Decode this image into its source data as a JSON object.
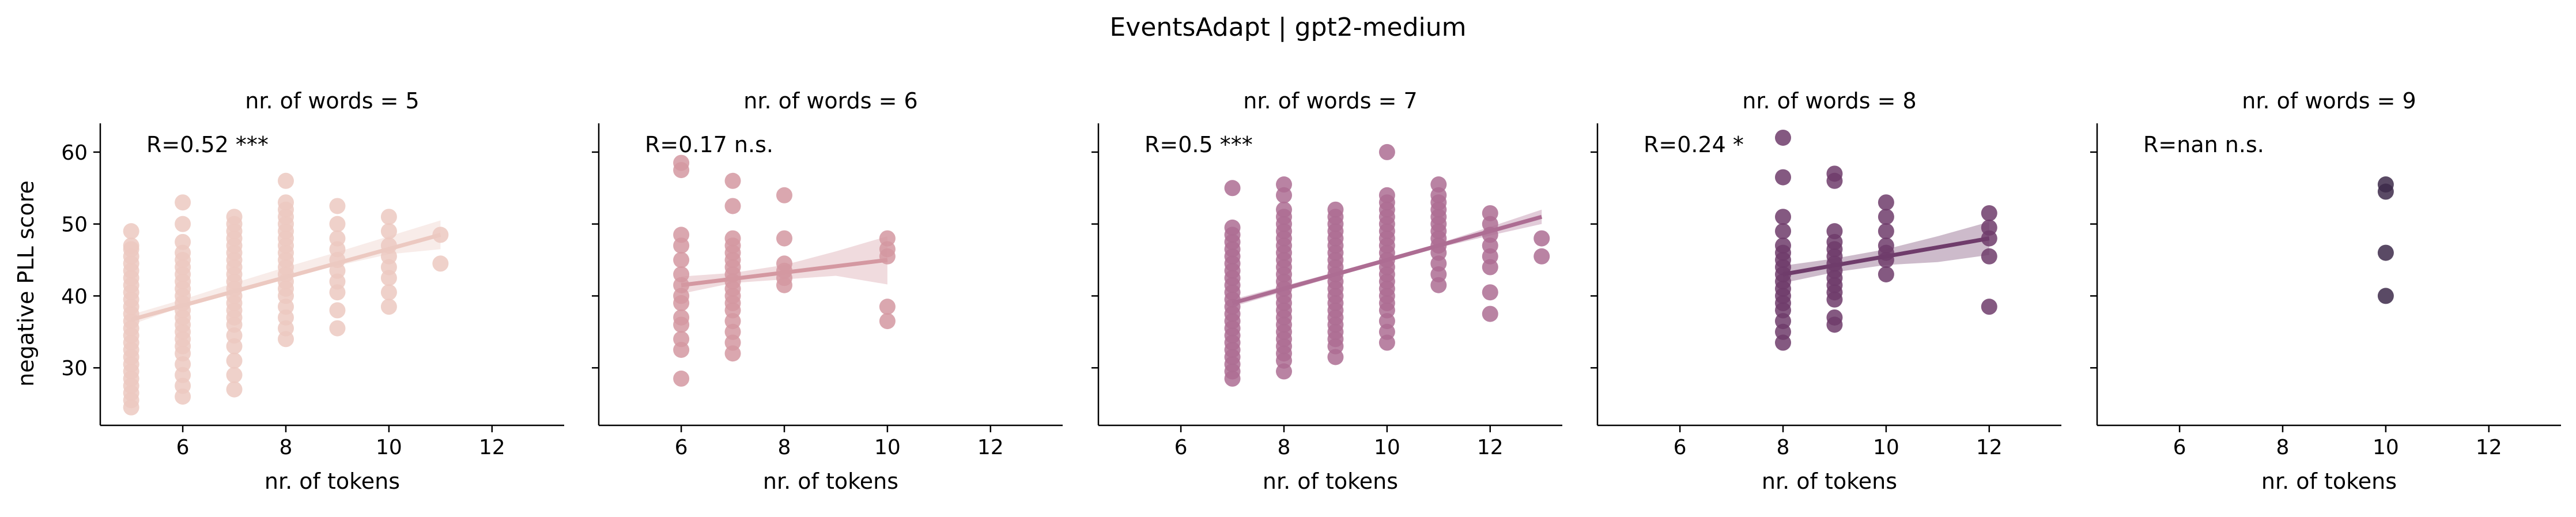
{
  "figure_title": "EventsAdapt | gpt2-medium",
  "shared_ylabel": "negative PLL score",
  "shared_xlabel": "nr. of tokens",
  "x_ticks": [
    6,
    8,
    10,
    12
  ],
  "y_ticks": [
    30,
    40,
    50,
    60
  ],
  "x_range": [
    4.4,
    13.4
  ],
  "y_range": [
    22,
    64
  ],
  "chart_data": [
    {
      "type": "scatter",
      "title": "nr. of words = 5",
      "annotation": "R=0.52 ***",
      "color": "#ecc9c1",
      "xlabel": "nr. of tokens",
      "ylabel": "negative PLL score",
      "points": [
        [
          5,
          24.5
        ],
        [
          5,
          25.5
        ],
        [
          5,
          26.5
        ],
        [
          5,
          27.5
        ],
        [
          5,
          28.5
        ],
        [
          5,
          29.5
        ],
        [
          5,
          30.5
        ],
        [
          5,
          31.5
        ],
        [
          5,
          32.5
        ],
        [
          5,
          33.5
        ],
        [
          5,
          34.5
        ],
        [
          5,
          35.5
        ],
        [
          5,
          36.5
        ],
        [
          5,
          37.5
        ],
        [
          5,
          38.5
        ],
        [
          5,
          39.5
        ],
        [
          5,
          40.5
        ],
        [
          5,
          41.5
        ],
        [
          5,
          42.5
        ],
        [
          5,
          43.5
        ],
        [
          5,
          44.5
        ],
        [
          5,
          45.5
        ],
        [
          5,
          46.5
        ],
        [
          5,
          47
        ],
        [
          5,
          49
        ],
        [
          6,
          26
        ],
        [
          6,
          27.5
        ],
        [
          6,
          29
        ],
        [
          6,
          30.5
        ],
        [
          6,
          32
        ],
        [
          6,
          33
        ],
        [
          6,
          34
        ],
        [
          6,
          35
        ],
        [
          6,
          36
        ],
        [
          6,
          37
        ],
        [
          6,
          38
        ],
        [
          6,
          39
        ],
        [
          6,
          40
        ],
        [
          6,
          41
        ],
        [
          6,
          42
        ],
        [
          6,
          43
        ],
        [
          6,
          44
        ],
        [
          6,
          45
        ],
        [
          6,
          46
        ],
        [
          6,
          47.5
        ],
        [
          6,
          50
        ],
        [
          6,
          53
        ],
        [
          7,
          27
        ],
        [
          7,
          29
        ],
        [
          7,
          31
        ],
        [
          7,
          33
        ],
        [
          7,
          34.5
        ],
        [
          7,
          36
        ],
        [
          7,
          37
        ],
        [
          7,
          38
        ],
        [
          7,
          39
        ],
        [
          7,
          40
        ],
        [
          7,
          41
        ],
        [
          7,
          42
        ],
        [
          7,
          43
        ],
        [
          7,
          44
        ],
        [
          7,
          45
        ],
        [
          7,
          46
        ],
        [
          7,
          47
        ],
        [
          7,
          48
        ],
        [
          7,
          49
        ],
        [
          7,
          50
        ],
        [
          7,
          51
        ],
        [
          8,
          34
        ],
        [
          8,
          35.5
        ],
        [
          8,
          37
        ],
        [
          8,
          38.5
        ],
        [
          8,
          40
        ],
        [
          8,
          41
        ],
        [
          8,
          42
        ],
        [
          8,
          43
        ],
        [
          8,
          44
        ],
        [
          8,
          45
        ],
        [
          8,
          46
        ],
        [
          8,
          47
        ],
        [
          8,
          48
        ],
        [
          8,
          49
        ],
        [
          8,
          50
        ],
        [
          8,
          51
        ],
        [
          8,
          52
        ],
        [
          8,
          53
        ],
        [
          8,
          56
        ],
        [
          9,
          35.5
        ],
        [
          9,
          38
        ],
        [
          9,
          40.5
        ],
        [
          9,
          42
        ],
        [
          9,
          43.5
        ],
        [
          9,
          45
        ],
        [
          9,
          46.5
        ],
        [
          9,
          48
        ],
        [
          9,
          50
        ],
        [
          9,
          52.5
        ],
        [
          10,
          38.5
        ],
        [
          10,
          40.5
        ],
        [
          10,
          42.5
        ],
        [
          10,
          44
        ],
        [
          10,
          45.5
        ],
        [
          10,
          47
        ],
        [
          10,
          49
        ],
        [
          10,
          51
        ],
        [
          11,
          44.5
        ],
        [
          11,
          48.5
        ]
      ],
      "fit": {
        "x": [
          5,
          11
        ],
        "y": [
          36.7,
          48.5
        ]
      },
      "ci": {
        "upper": [
          37.4,
          39.5,
          41.8,
          44.0,
          46.1,
          48.3,
          50.5
        ],
        "lower": [
          36.0,
          38.5,
          40.7,
          42.6,
          44.2,
          45.8,
          46.5
        ]
      }
    },
    {
      "type": "scatter",
      "title": "nr. of words = 6",
      "annotation": "R=0.17 n.s.",
      "color": "#d498a1",
      "xlabel": "nr. of tokens",
      "ylabel": "negative PLL score",
      "points": [
        [
          6,
          28.5
        ],
        [
          6,
          32.5
        ],
        [
          6,
          34
        ],
        [
          6,
          36
        ],
        [
          6,
          37
        ],
        [
          6,
          39
        ],
        [
          6,
          40
        ],
        [
          6,
          41.5
        ],
        [
          6,
          43
        ],
        [
          6,
          45
        ],
        [
          6,
          47
        ],
        [
          6,
          48.5
        ],
        [
          6,
          57.5
        ],
        [
          6,
          58.5
        ],
        [
          7,
          32
        ],
        [
          7,
          33.5
        ],
        [
          7,
          35
        ],
        [
          7,
          36.5
        ],
        [
          7,
          38
        ],
        [
          7,
          39
        ],
        [
          7,
          40
        ],
        [
          7,
          41
        ],
        [
          7,
          42
        ],
        [
          7,
          43
        ],
        [
          7,
          44
        ],
        [
          7,
          45
        ],
        [
          7,
          46
        ],
        [
          7,
          47
        ],
        [
          7,
          48
        ],
        [
          7,
          52.5
        ],
        [
          7,
          56
        ],
        [
          8,
          41.5
        ],
        [
          8,
          42.5
        ],
        [
          8,
          43.5
        ],
        [
          8,
          44.5
        ],
        [
          8,
          48
        ],
        [
          8,
          54
        ],
        [
          10,
          36.5
        ],
        [
          10,
          38.5
        ],
        [
          10,
          45.5
        ],
        [
          10,
          46.5
        ],
        [
          10,
          48
        ]
      ],
      "fit": {
        "x": [
          6,
          10
        ],
        "y": [
          41.5,
          45.0
        ]
      },
      "ci": {
        "upper": [
          42.7,
          43.2,
          44.3,
          46.2,
          48.3
        ],
        "lower": [
          40.3,
          41.8,
          42.3,
          42.8,
          41.6
        ]
      }
    },
    {
      "type": "scatter",
      "title": "nr. of words = 7",
      "annotation": "R=0.5 ***",
      "color": "#ad6d93",
      "xlabel": "nr. of tokens",
      "ylabel": "negative PLL score",
      "points": [
        [
          7,
          28.5
        ],
        [
          7,
          29.5
        ],
        [
          7,
          30.5
        ],
        [
          7,
          31.5
        ],
        [
          7,
          32.5
        ],
        [
          7,
          33.5
        ],
        [
          7,
          34.5
        ],
        [
          7,
          35.5
        ],
        [
          7,
          36.5
        ],
        [
          7,
          37.5
        ],
        [
          7,
          38.5
        ],
        [
          7,
          39.5
        ],
        [
          7,
          40.5
        ],
        [
          7,
          41.5
        ],
        [
          7,
          42.5
        ],
        [
          7,
          43.5
        ],
        [
          7,
          44.5
        ],
        [
          7,
          45.5
        ],
        [
          7,
          46.5
        ],
        [
          7,
          47.5
        ],
        [
          7,
          48.5
        ],
        [
          7,
          49.5
        ],
        [
          7,
          55
        ],
        [
          8,
          29.5
        ],
        [
          8,
          31
        ],
        [
          8,
          32
        ],
        [
          8,
          33
        ],
        [
          8,
          34
        ],
        [
          8,
          35
        ],
        [
          8,
          36
        ],
        [
          8,
          37
        ],
        [
          8,
          38
        ],
        [
          8,
          39
        ],
        [
          8,
          40
        ],
        [
          8,
          41
        ],
        [
          8,
          42
        ],
        [
          8,
          43
        ],
        [
          8,
          44
        ],
        [
          8,
          45
        ],
        [
          8,
          46
        ],
        [
          8,
          47
        ],
        [
          8,
          48
        ],
        [
          8,
          49
        ],
        [
          8,
          50
        ],
        [
          8,
          51
        ],
        [
          8,
          52
        ],
        [
          8,
          54
        ],
        [
          8,
          55.5
        ],
        [
          9,
          31.5
        ],
        [
          9,
          33
        ],
        [
          9,
          34
        ],
        [
          9,
          35
        ],
        [
          9,
          36
        ],
        [
          9,
          37
        ],
        [
          9,
          38
        ],
        [
          9,
          39
        ],
        [
          9,
          40
        ],
        [
          9,
          41
        ],
        [
          9,
          42
        ],
        [
          9,
          43
        ],
        [
          9,
          44
        ],
        [
          9,
          45
        ],
        [
          9,
          46
        ],
        [
          9,
          47
        ],
        [
          9,
          48
        ],
        [
          9,
          49
        ],
        [
          9,
          50
        ],
        [
          9,
          51
        ],
        [
          9,
          52
        ],
        [
          10,
          33.5
        ],
        [
          10,
          35
        ],
        [
          10,
          36.5
        ],
        [
          10,
          38
        ],
        [
          10,
          39
        ],
        [
          10,
          40
        ],
        [
          10,
          41
        ],
        [
          10,
          42
        ],
        [
          10,
          43
        ],
        [
          10,
          44
        ],
        [
          10,
          45
        ],
        [
          10,
          46
        ],
        [
          10,
          47
        ],
        [
          10,
          48
        ],
        [
          10,
          49
        ],
        [
          10,
          50
        ],
        [
          10,
          51
        ],
        [
          10,
          52
        ],
        [
          10,
          53
        ],
        [
          10,
          54
        ],
        [
          10,
          60
        ],
        [
          11,
          41.5
        ],
        [
          11,
          43
        ],
        [
          11,
          44.5
        ],
        [
          11,
          46
        ],
        [
          11,
          47
        ],
        [
          11,
          48
        ],
        [
          11,
          49
        ],
        [
          11,
          50
        ],
        [
          11,
          51
        ],
        [
          11,
          52
        ],
        [
          11,
          53
        ],
        [
          11,
          54
        ],
        [
          11,
          55.5
        ],
        [
          12,
          37.5
        ],
        [
          12,
          40.5
        ],
        [
          12,
          44
        ],
        [
          12,
          45.5
        ],
        [
          12,
          47
        ],
        [
          12,
          48.5
        ],
        [
          12,
          50
        ],
        [
          12,
          51.5
        ],
        [
          13,
          45.5
        ],
        [
          13,
          48
        ]
      ],
      "fit": {
        "x": [
          7,
          13
        ],
        "y": [
          39.0,
          51.0
        ]
      },
      "ci": {
        "upper": [
          39.5,
          41.4,
          43.3,
          45.3,
          47.3,
          49.6,
          52.0
        ],
        "lower": [
          38.5,
          40.6,
          42.7,
          44.7,
          46.7,
          48.4,
          50.0
        ]
      }
    },
    {
      "type": "scatter",
      "title": "nr. of words = 8",
      "annotation": "R=0.24 *",
      "color": "#6f3c6b",
      "xlabel": "nr. of tokens",
      "ylabel": "negative PLL score",
      "points": [
        [
          8,
          33.5
        ],
        [
          8,
          35
        ],
        [
          8,
          36.5
        ],
        [
          8,
          38
        ],
        [
          8,
          39
        ],
        [
          8,
          40
        ],
        [
          8,
          41
        ],
        [
          8,
          42
        ],
        [
          8,
          43
        ],
        [
          8,
          44
        ],
        [
          8,
          45
        ],
        [
          8,
          46
        ],
        [
          8,
          47
        ],
        [
          8,
          49
        ],
        [
          8,
          51
        ],
        [
          8,
          56.5
        ],
        [
          8,
          62
        ],
        [
          9,
          36
        ],
        [
          9,
          37
        ],
        [
          9,
          39.5
        ],
        [
          9,
          40.5
        ],
        [
          9,
          41.5
        ],
        [
          9,
          42.5
        ],
        [
          9,
          43.5
        ],
        [
          9,
          44.5
        ],
        [
          9,
          45.5
        ],
        [
          9,
          46.5
        ],
        [
          9,
          47.5
        ],
        [
          9,
          49
        ],
        [
          9,
          56
        ],
        [
          9,
          57
        ],
        [
          10,
          43
        ],
        [
          10,
          45
        ],
        [
          10,
          46
        ],
        [
          10,
          47
        ],
        [
          10,
          49
        ],
        [
          10,
          51
        ],
        [
          10,
          53
        ],
        [
          12,
          38.5
        ],
        [
          12,
          45.5
        ],
        [
          12,
          48
        ],
        [
          12,
          49.5
        ],
        [
          12,
          51.5
        ]
      ],
      "fit": {
        "x": [
          8,
          12
        ],
        "y": [
          43.0,
          48.0
        ]
      },
      "ci": {
        "upper": [
          44.2,
          45.2,
          46.5,
          48.3,
          50.3
        ],
        "lower": [
          41.8,
          43.3,
          44.3,
          44.7,
          45.7
        ]
      }
    },
    {
      "type": "scatter",
      "title": "nr. of words = 9",
      "annotation": "R=nan n.s.",
      "color": "#3d2a4a",
      "xlabel": "nr. of tokens",
      "ylabel": "negative PLL score",
      "points": [
        [
          10,
          40
        ],
        [
          10,
          46
        ],
        [
          10,
          54.5
        ],
        [
          10,
          55.5
        ]
      ],
      "fit": null,
      "ci": null
    }
  ]
}
